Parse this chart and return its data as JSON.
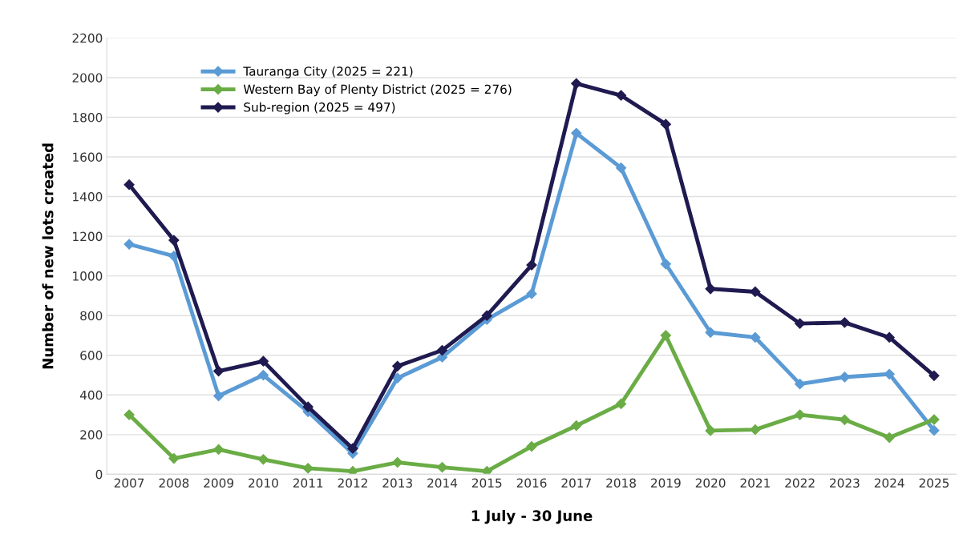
{
  "chart_data": {
    "type": "line",
    "xlabel": "1 July - 30 June",
    "ylabel": "Number of new lots created",
    "categories": [
      "2007",
      "2008",
      "2009",
      "2010",
      "2011",
      "2012",
      "2013",
      "2014",
      "2015",
      "2016",
      "2017",
      "2018",
      "2019",
      "2020",
      "2021",
      "2022",
      "2023",
      "2024",
      "2025"
    ],
    "series": [
      {
        "name": "Tauranga City (2025 = 221)",
        "color": "#5b9bd5",
        "values": [
          1160,
          1100,
          395,
          500,
          315,
          105,
          485,
          590,
          780,
          910,
          1720,
          1545,
          1060,
          715,
          690,
          455,
          490,
          505,
          221
        ]
      },
      {
        "name": "Western Bay of Plenty District (2025 = 276)",
        "color": "#6aac45",
        "values": [
          300,
          80,
          125,
          75,
          30,
          15,
          60,
          35,
          15,
          140,
          245,
          355,
          700,
          220,
          225,
          300,
          275,
          185,
          276
        ]
      },
      {
        "name": "Sub-region (2025 = 497)",
        "color": "#1f1a4f",
        "values": [
          1460,
          1180,
          520,
          570,
          340,
          130,
          545,
          625,
          800,
          1055,
          1970,
          1910,
          1765,
          935,
          920,
          760,
          765,
          690,
          497
        ]
      }
    ],
    "ylim": [
      0,
      2200
    ],
    "yticks": [
      0,
      200,
      400,
      600,
      800,
      1000,
      1200,
      1400,
      1600,
      1800,
      2000,
      2200
    ],
    "grid": "y",
    "legend": "top left",
    "marker": "diamond",
    "line_style": "solid"
  }
}
